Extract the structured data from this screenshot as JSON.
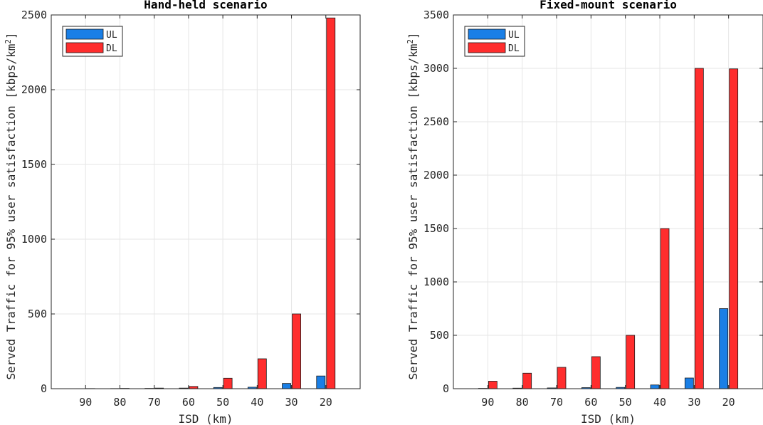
{
  "chart_data": [
    {
      "type": "bar",
      "title": "Hand-held scenario",
      "xlabel": "ISD (km)",
      "ylabel": "Served Traffic for 95% user satisfaction [kbps/km",
      "ylabel_sup": "2",
      "ylabel_close": "]",
      "categories": [
        "90",
        "80",
        "70",
        "60",
        "50",
        "40",
        "30",
        "20"
      ],
      "ylim": [
        0,
        2500
      ],
      "yticks": [
        0,
        500,
        1000,
        1500,
        2000,
        2500
      ],
      "ytick_labels": [
        "0",
        "500",
        "1000",
        "1500",
        "2000",
        "2500"
      ],
      "grid": true,
      "legend_position": "top-left",
      "series": [
        {
          "name": "UL",
          "color": "#1a7fe6",
          "values": [
            0.5,
            1,
            2,
            4,
            8,
            10,
            35,
            85
          ]
        },
        {
          "name": "DL",
          "color": "#ff2d2d",
          "values": [
            1,
            2,
            4,
            15,
            70,
            200,
            500,
            2480
          ]
        }
      ]
    },
    {
      "type": "bar",
      "title": "Fixed-mount scenario",
      "xlabel": "ISD (km)",
      "ylabel": "Served Traffic for 95% user satisfaction [kbps/km",
      "ylabel_sup": "2",
      "ylabel_close": "]",
      "categories": [
        "90",
        "80",
        "70",
        "60",
        "50",
        "40",
        "30",
        "20"
      ],
      "ylim": [
        0,
        3500
      ],
      "yticks": [
        0,
        500,
        1000,
        1500,
        2000,
        2500,
        3000,
        3500
      ],
      "ytick_labels": [
        "0",
        "500",
        "1000",
        "1500",
        "2000",
        "2500",
        "3000",
        "3500"
      ],
      "grid": true,
      "legend_position": "top-left",
      "series": [
        {
          "name": "UL",
          "color": "#1a7fe6",
          "values": [
            3,
            5,
            7,
            10,
            12,
            35,
            100,
            750
          ]
        },
        {
          "name": "DL",
          "color": "#ff2d2d",
          "values": [
            70,
            145,
            200,
            300,
            500,
            1500,
            3000,
            2995
          ]
        }
      ]
    }
  ]
}
